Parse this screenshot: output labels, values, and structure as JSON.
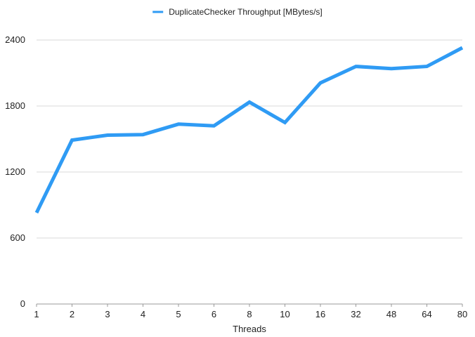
{
  "chart_data": {
    "type": "line",
    "title": "",
    "xlabel": "Threads",
    "ylabel": "",
    "categories": [
      "1",
      "2",
      "3",
      "4",
      "5",
      "6",
      "8",
      "10",
      "16",
      "32",
      "48",
      "64",
      "80"
    ],
    "series": [
      {
        "name": "DuplicateChecker Throughput [MBytes/s]",
        "values": [
          830,
          1490,
          1535,
          1540,
          1635,
          1620,
          1835,
          1650,
          2010,
          2160,
          2140,
          2160,
          2330
        ],
        "color": "#2f9bf4"
      }
    ],
    "ylim": [
      0,
      2400
    ],
    "yticks": [
      0,
      600,
      1200,
      1800,
      2400
    ],
    "grid": true,
    "legend": "top-center"
  }
}
